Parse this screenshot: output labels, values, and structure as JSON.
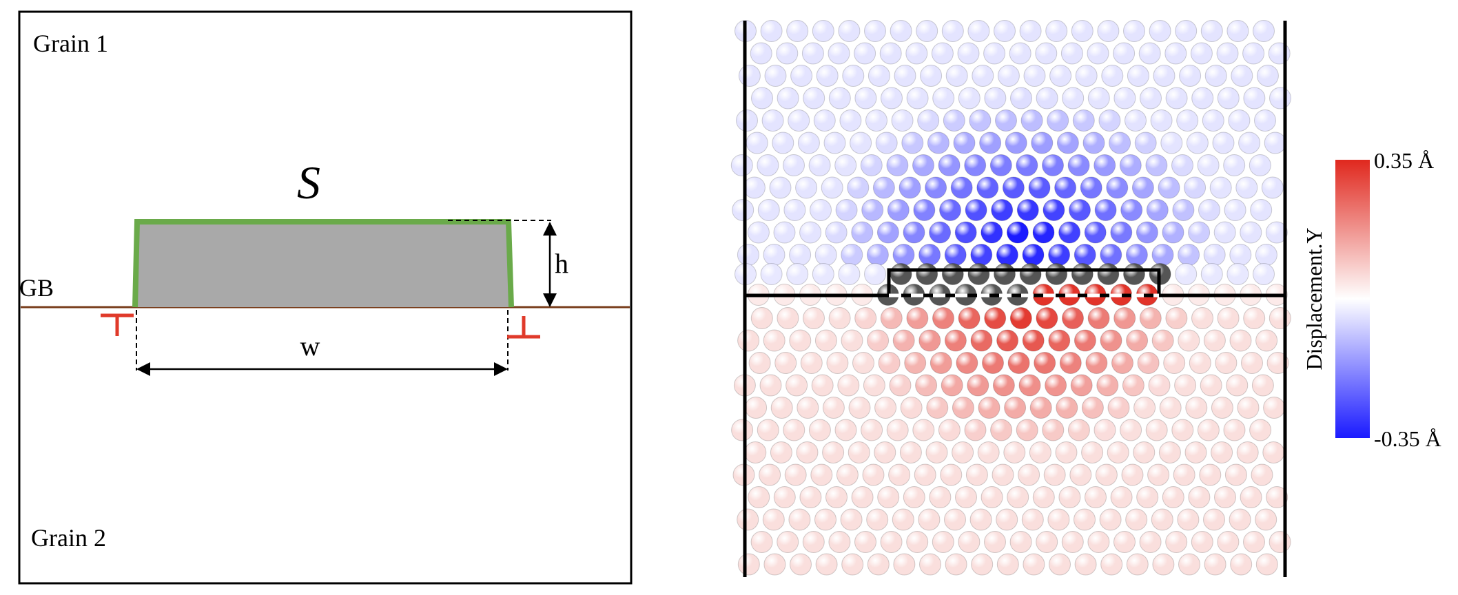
{
  "schematic": {
    "grain_top_label": "Grain 1",
    "grain_bottom_label": "Grain 2",
    "gb_label": "GB",
    "step_label": "S",
    "height_label": "h",
    "width_label": "w",
    "colors": {
      "step_fill": "#a9a9a9",
      "step_outline": "#6aaa4a",
      "gb_line": "#7a3f1e",
      "dislocation": "#e03a2a"
    }
  },
  "atoms": {
    "colorbar": {
      "title": "Displacement.Y",
      "max_label": "0.35 Å",
      "min_label": "-0.35 Å",
      "max_color": "#e0281e",
      "mid_color": "#ffffff",
      "min_color": "#1a1aff"
    },
    "core_atom_color": "#555555"
  }
}
